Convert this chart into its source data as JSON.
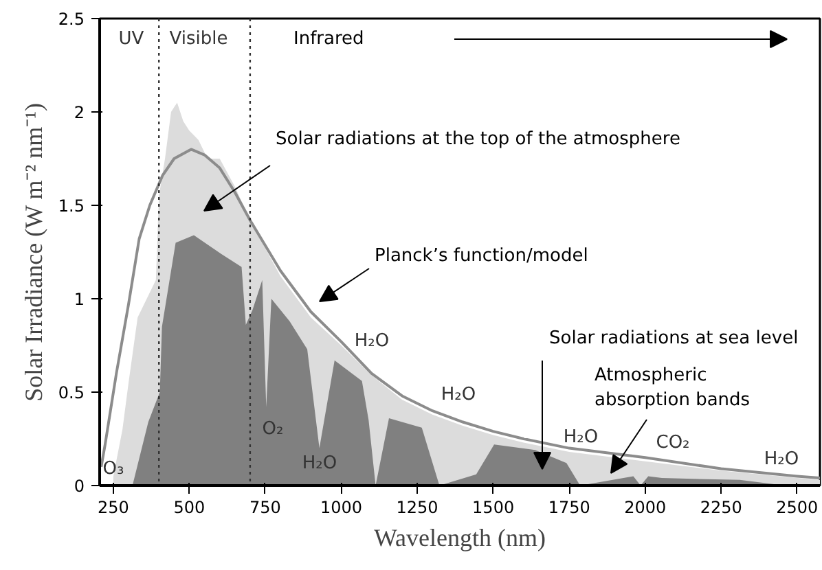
{
  "chart_data": {
    "type": "area",
    "xlabel": "Wavelength (nm)",
    "ylabel": "Solar Irradiance (W m⁻² nm⁻¹)",
    "xlim": [
      205,
      2575
    ],
    "ylim": [
      0,
      2.5
    ],
    "xticks": [
      250,
      500,
      750,
      1000,
      1250,
      1500,
      1750,
      2000,
      2250,
      2500
    ],
    "yticks": [
      0,
      0.5,
      1,
      1.5,
      2,
      2.5
    ],
    "grid": false,
    "series": [
      {
        "color": "#dcdcdc",
        "x": [
          250,
          280,
          300,
          330,
          360,
          390,
          400,
          420,
          440,
          460,
          480,
          500,
          530,
          560,
          600,
          650,
          700,
          800,
          900,
          1000,
          1100,
          1200,
          1300,
          1400,
          1500,
          1600,
          1750,
          2000,
          2250,
          2500,
          2575
        ],
        "values": [
          0.05,
          0.3,
          0.55,
          0.9,
          1.0,
          1.1,
          1.55,
          1.75,
          2.0,
          2.05,
          1.95,
          1.9,
          1.85,
          1.75,
          1.75,
          1.6,
          1.42,
          1.12,
          0.9,
          0.75,
          0.59,
          0.46,
          0.38,
          0.32,
          0.27,
          0.23,
          0.18,
          0.13,
          0.08,
          0.04,
          0.03
        ]
      },
      {
        "color": "#808080",
        "x": [
          313,
          365,
          403,
          410,
          455,
          515,
          605,
          672,
          686,
          708,
          740,
          753,
          770,
          830,
          888,
          928,
          978,
          1068,
          1090,
          1113,
          1157,
          1265,
          1323,
          1444,
          1503,
          1638,
          1741,
          1786,
          1961,
          1985,
          2010,
          2055,
          2311,
          2460
        ],
        "values": [
          0,
          0.34,
          0.5,
          0.85,
          1.3,
          1.34,
          1.24,
          1.17,
          0.86,
          0.94,
          1.1,
          0.42,
          1.0,
          0.88,
          0.73,
          0.2,
          0.67,
          0.56,
          0.35,
          0,
          0.36,
          0.31,
          0,
          0.06,
          0.22,
          0.19,
          0.12,
          0,
          0.05,
          0,
          0.05,
          0.04,
          0.03,
          0
        ]
      },
      {
        "type": "line",
        "color": "#8c8c8c",
        "x": [
          210,
          223,
          260,
          300,
          335,
          370,
          412,
          450,
          506,
          550,
          600,
          650,
          700,
          800,
          900,
          1000,
          1100,
          1200,
          1300,
          1400,
          1500,
          1600,
          1750,
          2000,
          2250,
          2500,
          2575
        ],
        "values": [
          0.1,
          0.22,
          0.6,
          0.97,
          1.32,
          1.5,
          1.66,
          1.75,
          1.8,
          1.77,
          1.7,
          1.57,
          1.42,
          1.15,
          0.93,
          0.77,
          0.6,
          0.48,
          0.4,
          0.34,
          0.29,
          0.25,
          0.2,
          0.15,
          0.09,
          0.05,
          0.04
        ]
      }
    ],
    "ref_lines": [
      {
        "axis": "x",
        "value": 400,
        "color": "#333333",
        "line_style": "dotted"
      },
      {
        "axis": "x",
        "value": 700,
        "color": "#333333",
        "line_style": "dotted"
      }
    ],
    "annotations": [
      "UV",
      "Visible",
      "Infrared",
      "Solar radiations at the top of the atmosphere",
      "Planck’s function/model",
      "Solar radiations at sea level",
      "Atmospheric\nabsorption bands",
      "O₃",
      "O₂",
      "H₂O",
      "H₂O",
      "H₂O",
      "H₂O",
      "CO₂",
      "H₂O"
    ]
  }
}
